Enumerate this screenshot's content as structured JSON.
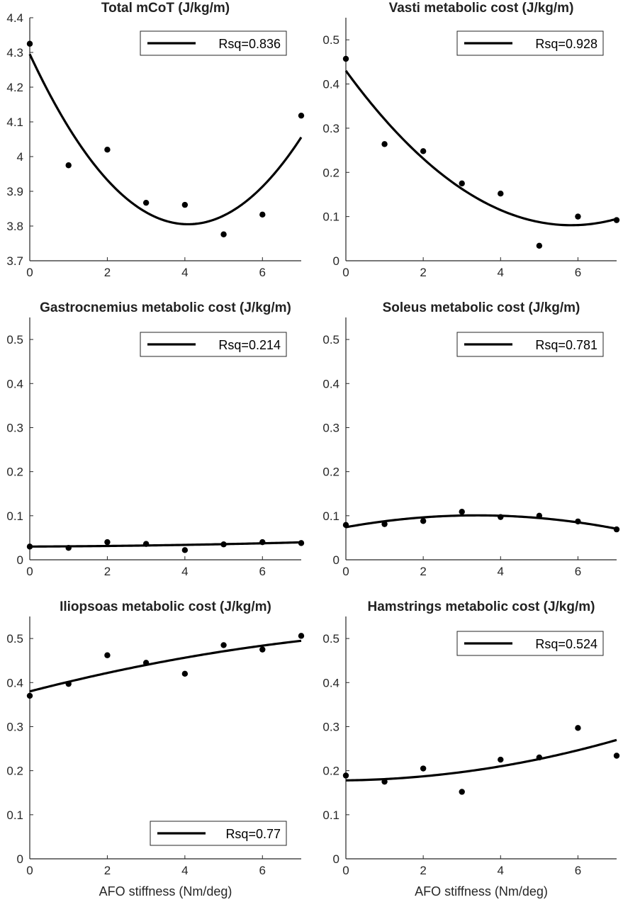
{
  "figure": {
    "xlabel_left": "AFO stiffness (Nm/deg)",
    "xlabel_right": "AFO stiffness (Nm/deg)"
  },
  "colors": {
    "axis": "#262626",
    "line": "#000000",
    "marker": "#000000",
    "legend_edge": "#262626"
  },
  "chart_data": [
    {
      "type": "scatter",
      "title": "Total mCoT (J/kg/m)",
      "xlabel": "",
      "ylabel": "",
      "xlim": [
        0,
        7
      ],
      "ylim": [
        3.7,
        4.4
      ],
      "xticks": [
        0,
        2,
        4,
        6
      ],
      "xticklabels": [
        "0",
        "2",
        "4",
        "6"
      ],
      "yticks": [
        3.7,
        3.8,
        3.9,
        4.0,
        4.1,
        4.2,
        4.3,
        4.4
      ],
      "yticklabels": [
        "3.7",
        "3.8",
        "3.9",
        "4",
        "4.1",
        "4.2",
        "4.3",
        "4.4"
      ],
      "points": {
        "x": [
          0,
          1,
          2,
          3,
          4,
          5,
          6,
          7
        ],
        "y": [
          4.325,
          3.975,
          4.02,
          3.867,
          3.861,
          3.776,
          3.833,
          4.118
        ]
      },
      "fit": {
        "type": "quadratic",
        "coefficients": [
          4.295,
          -0.24,
          0.0294
        ]
      },
      "legend": {
        "label": "Rsq=0.836",
        "location": "top-right"
      }
    },
    {
      "type": "scatter",
      "title": "Vasti metabolic cost (J/kg/m)",
      "xlabel": "",
      "ylabel": "",
      "xlim": [
        0,
        7
      ],
      "ylim": [
        0,
        0.55
      ],
      "xticks": [
        0,
        2,
        4,
        6
      ],
      "xticklabels": [
        "0",
        "2",
        "4",
        "6"
      ],
      "yticks": [
        0,
        0.1,
        0.2,
        0.3,
        0.4,
        0.5
      ],
      "yticklabels": [
        "0",
        "0.1",
        "0.2",
        "0.3",
        "0.4",
        "0.5"
      ],
      "points": {
        "x": [
          0,
          1,
          2,
          3,
          4,
          5,
          6,
          7
        ],
        "y": [
          0.457,
          0.264,
          0.248,
          0.175,
          0.152,
          0.034,
          0.1,
          0.092
        ]
      },
      "fit": {
        "type": "quadratic",
        "coefficients": [
          0.43,
          -0.12,
          0.0103
        ]
      },
      "legend": {
        "label": "Rsq=0.928",
        "location": "top-right"
      }
    },
    {
      "type": "scatter",
      "title": "Gastrocnemius metabolic cost (J/kg/m)",
      "xlabel": "",
      "ylabel": "",
      "xlim": [
        0,
        7
      ],
      "ylim": [
        0,
        0.55
      ],
      "xticks": [
        0,
        2,
        4,
        6
      ],
      "xticklabels": [
        "0",
        "2",
        "4",
        "6"
      ],
      "yticks": [
        0,
        0.1,
        0.2,
        0.3,
        0.4,
        0.5
      ],
      "yticklabels": [
        "0",
        "0.1",
        "0.2",
        "0.3",
        "0.4",
        "0.5"
      ],
      "points": {
        "x": [
          0,
          1,
          2,
          3,
          4,
          5,
          6,
          7
        ],
        "y": [
          0.03,
          0.027,
          0.04,
          0.036,
          0.022,
          0.035,
          0.04,
          0.038
        ]
      },
      "fit": {
        "type": "quadratic",
        "coefficients": [
          0.03,
          0.0004,
          0.00014
        ]
      },
      "legend": {
        "label": "Rsq=0.214",
        "location": "top-right"
      }
    },
    {
      "type": "scatter",
      "title": "Soleus metabolic cost (J/kg/m)",
      "xlabel": "",
      "ylabel": "",
      "xlim": [
        0,
        7
      ],
      "ylim": [
        0,
        0.55
      ],
      "xticks": [
        0,
        2,
        4,
        6
      ],
      "xticklabels": [
        "0",
        "2",
        "4",
        "6"
      ],
      "yticks": [
        0,
        0.1,
        0.2,
        0.3,
        0.4,
        0.5
      ],
      "yticklabels": [
        "0",
        "0.1",
        "0.2",
        "0.3",
        "0.4",
        "0.5"
      ],
      "points": {
        "x": [
          0,
          1,
          2,
          3,
          4,
          5,
          6,
          7
        ],
        "y": [
          0.079,
          0.081,
          0.088,
          0.109,
          0.097,
          0.1,
          0.087,
          0.069
        ]
      },
      "fit": {
        "type": "quadratic",
        "coefficients": [
          0.074,
          0.0158,
          -0.00233
        ]
      },
      "legend": {
        "label": "Rsq=0.781",
        "location": "top-right"
      }
    },
    {
      "type": "scatter",
      "title": "Iliopsoas metabolic cost (J/kg/m)",
      "xlabel": "AFO stiffness (Nm/deg)",
      "ylabel": "",
      "xlim": [
        0,
        7
      ],
      "ylim": [
        0,
        0.55
      ],
      "xticks": [
        0,
        2,
        4,
        6
      ],
      "xticklabels": [
        "0",
        "2",
        "4",
        "6"
      ],
      "yticks": [
        0,
        0.1,
        0.2,
        0.3,
        0.4,
        0.5
      ],
      "yticklabels": [
        "0",
        "0.1",
        "0.2",
        "0.3",
        "0.4",
        "0.5"
      ],
      "points": {
        "x": [
          0,
          1,
          2,
          3,
          4,
          5,
          6,
          7
        ],
        "y": [
          0.37,
          0.397,
          0.462,
          0.445,
          0.42,
          0.485,
          0.475,
          0.506
        ]
      },
      "fit": {
        "type": "quadratic",
        "coefficients": [
          0.38,
          0.0227,
          -0.0009
        ]
      },
      "legend": {
        "label": "Rsq=0.77",
        "location": "bottom-right"
      }
    },
    {
      "type": "scatter",
      "title": "Hamstrings metabolic cost (J/kg/m)",
      "xlabel": "AFO stiffness (Nm/deg)",
      "ylabel": "",
      "xlim": [
        0,
        7
      ],
      "ylim": [
        0,
        0.55
      ],
      "xticks": [
        0,
        2,
        4,
        6
      ],
      "xticklabels": [
        "0",
        "2",
        "4",
        "6"
      ],
      "yticks": [
        0,
        0.1,
        0.2,
        0.3,
        0.4,
        0.5
      ],
      "yticklabels": [
        "0",
        "0.1",
        "0.2",
        "0.3",
        "0.4",
        "0.5"
      ],
      "points": {
        "x": [
          0,
          1,
          2,
          3,
          4,
          5,
          6,
          7
        ],
        "y": [
          0.189,
          0.175,
          0.205,
          0.152,
          0.225,
          0.23,
          0.297,
          0.234
        ]
      },
      "fit": {
        "type": "quadratic",
        "coefficients": [
          0.178,
          0.0012,
          0.0017
        ]
      },
      "legend": {
        "label": "Rsq=0.524",
        "location": "top-right"
      }
    }
  ]
}
